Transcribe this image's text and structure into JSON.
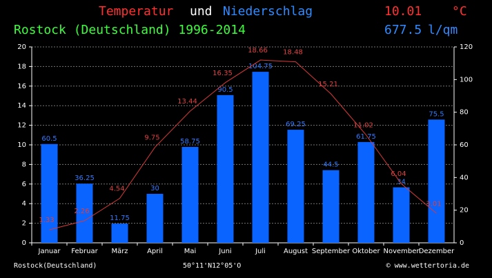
{
  "chart_data": {
    "type": "combo",
    "title_parts": [
      "Temperatur",
      "und",
      "Niederschlag"
    ],
    "subtitle": "Rostock (Deutschland) 1996-2014",
    "mean_temperature": 10.01,
    "temperature_unit": "°C",
    "total_precipitation": 677.5,
    "precipitation_unit": "l/qm",
    "footer_left": "Rostock(Deutschland)",
    "footer_center": "50°11'N12°05'O",
    "footer_right": "© www.wettertoria.de",
    "categories": [
      "Januar",
      "Februar",
      "März",
      "April",
      "Mai",
      "Juni",
      "Juli",
      "August",
      "September",
      "Oktober",
      "November",
      "Dezember"
    ],
    "series": [
      {
        "name": "Niederschlag",
        "type": "bar",
        "axis": "y2",
        "color": "#0a64ff",
        "label_color": "#2f7bff",
        "values": [
          60.5,
          36.25,
          11.75,
          30,
          58.75,
          90.5,
          104.75,
          69.25,
          44.5,
          61.75,
          34,
          75.5
        ]
      },
      {
        "name": "Temperatur",
        "type": "line",
        "axis": "y",
        "color": "#d83a3a",
        "label_color": "#e04040",
        "values": [
          1.33,
          2.26,
          4.54,
          9.75,
          13.44,
          16.35,
          18.66,
          18.48,
          15.21,
          11.02,
          6.04,
          3.01
        ]
      }
    ],
    "ylim": [
      0,
      20
    ],
    "yticks": [
      0,
      2,
      4,
      6,
      8,
      10,
      12,
      14,
      16,
      18,
      20
    ],
    "y2lim": [
      0,
      120
    ],
    "y2ticks": [
      0,
      20,
      40,
      60,
      80,
      100,
      120
    ],
    "grid": true
  }
}
